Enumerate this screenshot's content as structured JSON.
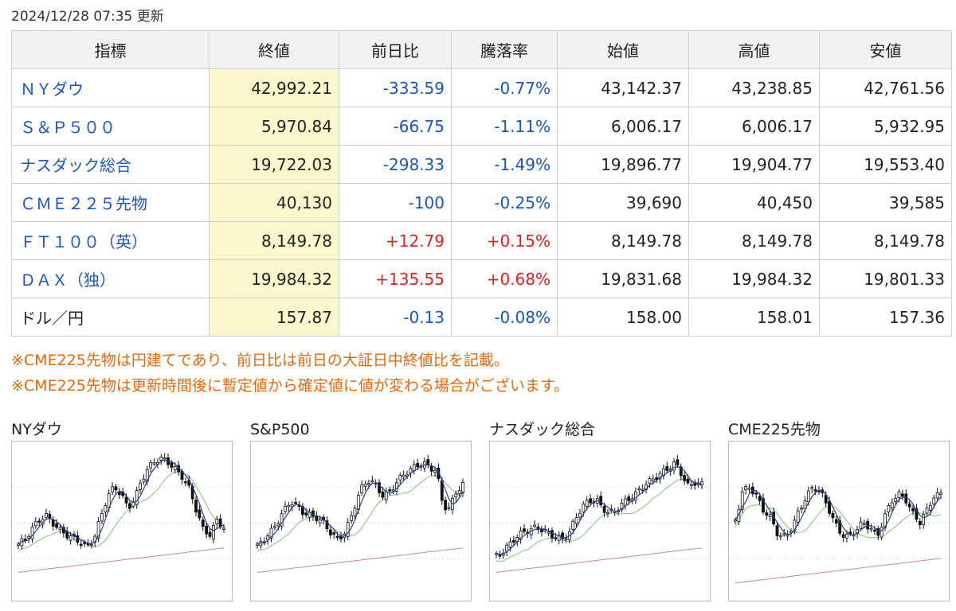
{
  "updated": "2024/12/28 07:35 更新",
  "colors": {
    "negative": "#1a56b8",
    "positive": "#e02020",
    "close_bg": "#fbf7cc",
    "notes": "#e06a10"
  },
  "table": {
    "headers": [
      "指標",
      "終値",
      "前日比",
      "騰落率",
      "始値",
      "高値",
      "安値"
    ],
    "rows": [
      {
        "name": "ＮＹダウ",
        "link": true,
        "close": "42,992.21",
        "change": "-333.59",
        "pct": "-0.77%",
        "open": "43,142.37",
        "high": "43,238.85",
        "low": "42,761.56",
        "sign": "neg"
      },
      {
        "name": "Ｓ＆Ｐ５００",
        "link": true,
        "close": "5,970.84",
        "change": "-66.75",
        "pct": "-1.11%",
        "open": "6,006.17",
        "high": "6,006.17",
        "low": "5,932.95",
        "sign": "neg"
      },
      {
        "name": "ナスダック総合",
        "link": true,
        "close": "19,722.03",
        "change": "-298.33",
        "pct": "-1.49%",
        "open": "19,896.77",
        "high": "19,904.77",
        "low": "19,553.40",
        "sign": "neg"
      },
      {
        "name": "ＣＭＥ２２５先物",
        "link": true,
        "close": "40,130",
        "change": "-100",
        "pct": "-0.25%",
        "open": "39,690",
        "high": "40,450",
        "low": "39,585",
        "sign": "neg"
      },
      {
        "name": "ＦＴ１００（英）",
        "link": true,
        "close": "8,149.78",
        "change": "+12.79",
        "pct": "+0.15%",
        "open": "8,149.78",
        "high": "8,149.78",
        "low": "8,149.78",
        "sign": "pos"
      },
      {
        "name": "ＤＡＸ（独）",
        "link": true,
        "close": "19,984.32",
        "change": "+135.55",
        "pct": "+0.68%",
        "open": "19,831.68",
        "high": "19,984.32",
        "low": "19,801.33",
        "sign": "pos"
      },
      {
        "name": "ドル／円",
        "link": false,
        "close": "157.87",
        "change": "-0.13",
        "pct": "-0.08%",
        "open": "158.00",
        "high": "158.01",
        "low": "157.36",
        "sign": "neg"
      }
    ]
  },
  "notes": [
    "※CME225先物は円建てであり、前日比は前日の大証日中終値比を記載。",
    "※CME225先物は更新時間後に暫定値から確定値に値が変わる場合がございます。"
  ],
  "charts": [
    {
      "title": "NYダウ",
      "icon": "candlestick-chart-icon",
      "trend": [
        0.22,
        0.26,
        0.35,
        0.42,
        0.46,
        0.4,
        0.34,
        0.3,
        0.27,
        0.24,
        0.2,
        0.26,
        0.44,
        0.62,
        0.7,
        0.64,
        0.52,
        0.6,
        0.76,
        0.86,
        0.92,
        0.94,
        0.9,
        0.84,
        0.78,
        0.68,
        0.5,
        0.34,
        0.3,
        0.42,
        0.36
      ]
    },
    {
      "title": "S&P500",
      "icon": "candlestick-chart-icon",
      "trend": [
        0.2,
        0.26,
        0.32,
        0.4,
        0.5,
        0.58,
        0.54,
        0.48,
        0.46,
        0.44,
        0.4,
        0.32,
        0.26,
        0.3,
        0.42,
        0.6,
        0.72,
        0.76,
        0.7,
        0.62,
        0.66,
        0.74,
        0.8,
        0.84,
        0.88,
        0.9,
        0.86,
        0.84,
        0.54,
        0.52,
        0.66,
        0.72
      ]
    },
    {
      "title": "ナスダック総合",
      "icon": "candlestick-chart-icon",
      "trend": [
        0.12,
        0.16,
        0.22,
        0.28,
        0.32,
        0.34,
        0.36,
        0.34,
        0.3,
        0.28,
        0.26,
        0.32,
        0.44,
        0.54,
        0.58,
        0.6,
        0.52,
        0.48,
        0.5,
        0.56,
        0.6,
        0.64,
        0.7,
        0.74,
        0.78,
        0.82,
        0.86,
        0.9,
        0.8,
        0.7,
        0.74,
        0.72
      ]
    },
    {
      "title": "CME225先物",
      "icon": "candlestick-chart-icon",
      "trend": [
        0.42,
        0.66,
        0.7,
        0.62,
        0.5,
        0.44,
        0.3,
        0.28,
        0.36,
        0.5,
        0.62,
        0.7,
        0.66,
        0.54,
        0.4,
        0.3,
        0.28,
        0.34,
        0.4,
        0.36,
        0.28,
        0.44,
        0.58,
        0.64,
        0.6,
        0.48,
        0.4,
        0.5,
        0.62,
        0.64
      ]
    }
  ]
}
